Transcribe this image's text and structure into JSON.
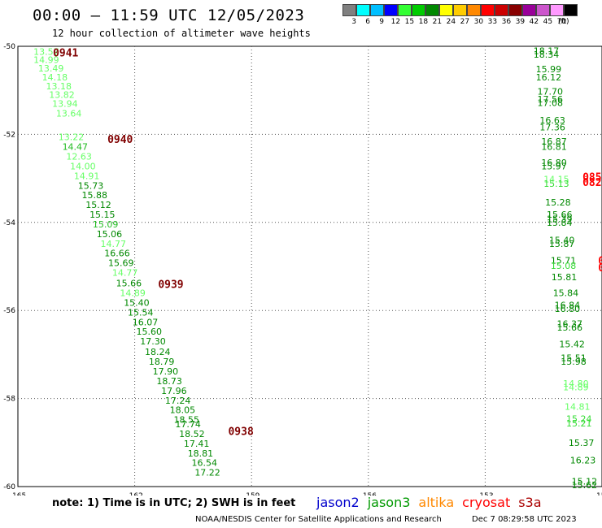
{
  "header": {
    "title": "00:00 – 11:59 UTC 12/05/2023",
    "subtitle": "12 hour collection of altimeter wave heights"
  },
  "legend": {
    "unit": "(ft)",
    "bins": [
      {
        "label": "3",
        "color": "#808080"
      },
      {
        "label": "6",
        "color": "#00ffff"
      },
      {
        "label": "9",
        "color": "#00bfff"
      },
      {
        "label": "12",
        "color": "#0000ff"
      },
      {
        "label": "15",
        "color": "#33ff33"
      },
      {
        "label": "18",
        "color": "#00cc00"
      },
      {
        "label": "21",
        "color": "#008800"
      },
      {
        "label": "24",
        "color": "#ffff00"
      },
      {
        "label": "27",
        "color": "#ffcc00"
      },
      {
        "label": "30",
        "color": "#ff8800"
      },
      {
        "label": "33",
        "color": "#ff0000"
      },
      {
        "label": "36",
        "color": "#cc0000"
      },
      {
        "label": "39",
        "color": "#880000"
      },
      {
        "label": "42",
        "color": "#990099"
      },
      {
        "label": "45",
        "color": "#cc55cc"
      },
      {
        "label": "70",
        "color": "#ff99ff"
      },
      {
        "label": "",
        "color": "#000000"
      }
    ]
  },
  "chart_data": {
    "type": "scatter",
    "title": "00:00 – 11:59 UTC 12/05/2023",
    "xlim": [
      -165,
      -150
    ],
    "ylim": [
      -60,
      -50
    ],
    "x_ticks": [
      -165,
      -162,
      -159,
      -156,
      -153,
      -150
    ],
    "y_ticks": [
      -50,
      -52,
      -54,
      -56,
      -58,
      -60
    ],
    "x_tick_labels": [
      "-165",
      "-162",
      "-159",
      "-156",
      "-153",
      "-150"
    ],
    "y_tick_labels": [
      "-50",
      "-52",
      "-54",
      "-56",
      "-58",
      "-60"
    ],
    "grid": true,
    "tracks": [
      {
        "id": "track-west",
        "points": [
          {
            "lon": -164.6,
            "lat": -50.12,
            "v": "13.57",
            "c": "#66ff66"
          },
          {
            "lon": -164.6,
            "lat": -50.3,
            "v": "14.99",
            "c": "#66ff66"
          },
          {
            "lon": -164.48,
            "lat": -50.5,
            "v": "13.49",
            "c": "#66ff66"
          },
          {
            "lon": -164.38,
            "lat": -50.7,
            "v": "14.18",
            "c": "#66ff66"
          },
          {
            "lon": -164.28,
            "lat": -50.9,
            "v": "13.18",
            "c": "#66ff66"
          },
          {
            "lon": -164.2,
            "lat": -51.1,
            "v": "13.82",
            "c": "#66ff66"
          },
          {
            "lon": -164.12,
            "lat": -51.3,
            "v": "13.94",
            "c": "#66ff66"
          },
          {
            "lon": -164.02,
            "lat": -51.52,
            "v": "13.64",
            "c": "#66ff66"
          },
          {
            "lon": -163.96,
            "lat": -52.06,
            "v": "13.22",
            "c": "#66ff66"
          },
          {
            "lon": -163.86,
            "lat": -52.28,
            "v": "14.47",
            "c": "#22bb22"
          },
          {
            "lon": -163.76,
            "lat": -52.5,
            "v": "12.63",
            "c": "#66ff66"
          },
          {
            "lon": -163.66,
            "lat": -52.72,
            "v": "14.00",
            "c": "#66ff66"
          },
          {
            "lon": -163.56,
            "lat": -52.94,
            "v": "14.91",
            "c": "#66ff66"
          },
          {
            "lon": -163.46,
            "lat": -53.16,
            "v": "15.73",
            "c": "#008800"
          },
          {
            "lon": -163.36,
            "lat": -53.38,
            "v": "15.88",
            "c": "#008800"
          },
          {
            "lon": -163.26,
            "lat": -53.6,
            "v": "15.12",
            "c": "#008800"
          },
          {
            "lon": -163.16,
            "lat": -53.82,
            "v": "15.15",
            "c": "#008800"
          },
          {
            "lon": -163.08,
            "lat": -54.04,
            "v": "15.09",
            "c": "#22bb22"
          },
          {
            "lon": -162.98,
            "lat": -54.26,
            "v": "15.06",
            "c": "#008800"
          },
          {
            "lon": -162.88,
            "lat": -54.48,
            "v": "14.77",
            "c": "#66ff66"
          },
          {
            "lon": -162.78,
            "lat": -54.7,
            "v": "16.66",
            "c": "#008800"
          },
          {
            "lon": -162.68,
            "lat": -54.92,
            "v": "15.69",
            "c": "#008800"
          },
          {
            "lon": -162.58,
            "lat": -55.14,
            "v": "14.77",
            "c": "#66ff66"
          },
          {
            "lon": -162.48,
            "lat": -55.38,
            "v": "15.66",
            "c": "#008800"
          },
          {
            "lon": -162.38,
            "lat": -55.6,
            "v": "14.89",
            "c": "#66ff66"
          },
          {
            "lon": -162.28,
            "lat": -55.82,
            "v": "15.40",
            "c": "#008800"
          },
          {
            "lon": -162.18,
            "lat": -56.04,
            "v": "15.54",
            "c": "#008800"
          },
          {
            "lon": -162.06,
            "lat": -56.26,
            "v": "16.07",
            "c": "#008800"
          },
          {
            "lon": -161.96,
            "lat": -56.48,
            "v": "15.60",
            "c": "#008800"
          },
          {
            "lon": -161.86,
            "lat": -56.7,
            "v": "17.30",
            "c": "#008800"
          },
          {
            "lon": -161.74,
            "lat": -56.94,
            "v": "18.24",
            "c": "#008800"
          },
          {
            "lon": -161.64,
            "lat": -57.16,
            "v": "18.79",
            "c": "#008800"
          },
          {
            "lon": -161.54,
            "lat": -57.38,
            "v": "17.90",
            "c": "#008800"
          },
          {
            "lon": -161.44,
            "lat": -57.6,
            "v": "18.73",
            "c": "#008800"
          },
          {
            "lon": -161.32,
            "lat": -57.82,
            "v": "17.96",
            "c": "#008800"
          },
          {
            "lon": -161.22,
            "lat": -58.04,
            "v": "17.24",
            "c": "#008800"
          },
          {
            "lon": -161.1,
            "lat": -58.26,
            "v": "18.05",
            "c": "#008800"
          },
          {
            "lon": -161.0,
            "lat": -58.48,
            "v": "18.55",
            "c": "#008800"
          },
          {
            "lon": -160.96,
            "lat": -58.58,
            "v": "17.74",
            "c": "#008800"
          },
          {
            "lon": -160.86,
            "lat": -58.8,
            "v": "18.52",
            "c": "#008800"
          },
          {
            "lon": -160.74,
            "lat": -59.02,
            "v": "17.41",
            "c": "#008800"
          },
          {
            "lon": -160.64,
            "lat": -59.24,
            "v": "18.81",
            "c": "#008800"
          },
          {
            "lon": -160.54,
            "lat": -59.46,
            "v": "16.54",
            "c": "#008800"
          },
          {
            "lon": -160.46,
            "lat": -59.68,
            "v": "17.22",
            "c": "#008800"
          }
        ]
      },
      {
        "id": "track-east",
        "points": [
          {
            "lon": -151.76,
            "lat": -50.1,
            "v": "18.17",
            "c": "#008800"
          },
          {
            "lon": -151.76,
            "lat": -50.18,
            "v": "18.34",
            "c": "#008800"
          },
          {
            "lon": -151.7,
            "lat": -50.52,
            "v": "15.99",
            "c": "#008800"
          },
          {
            "lon": -151.7,
            "lat": -50.7,
            "v": "16.12",
            "c": "#008800"
          },
          {
            "lon": -151.66,
            "lat": -51.02,
            "v": "17.70",
            "c": "#008800"
          },
          {
            "lon": -151.66,
            "lat": -51.2,
            "v": "17.56",
            "c": "#008800"
          },
          {
            "lon": -151.66,
            "lat": -51.28,
            "v": "17.08",
            "c": "#008800"
          },
          {
            "lon": -151.6,
            "lat": -51.68,
            "v": "16.63",
            "c": "#008800"
          },
          {
            "lon": -151.6,
            "lat": -51.84,
            "v": "17.36",
            "c": "#008800"
          },
          {
            "lon": -151.56,
            "lat": -52.16,
            "v": "16.87",
            "c": "#008800"
          },
          {
            "lon": -151.56,
            "lat": -52.28,
            "v": "16.81",
            "c": "#008800"
          },
          {
            "lon": -151.56,
            "lat": -52.64,
            "v": "16.80",
            "c": "#008800"
          },
          {
            "lon": -151.56,
            "lat": -52.72,
            "v": "15.97",
            "c": "#008800"
          },
          {
            "lon": -151.5,
            "lat": -53.02,
            "v": "14.15",
            "c": "#66ff66"
          },
          {
            "lon": -151.5,
            "lat": -53.12,
            "v": "15.13",
            "c": "#33dd33"
          },
          {
            "lon": -151.46,
            "lat": -53.54,
            "v": "15.28",
            "c": "#008800"
          },
          {
            "lon": -151.42,
            "lat": -53.82,
            "v": "15.66",
            "c": "#008800"
          },
          {
            "lon": -151.42,
            "lat": -53.92,
            "v": "15.39",
            "c": "#008800"
          },
          {
            "lon": -151.42,
            "lat": -54.0,
            "v": "15.84",
            "c": "#008800"
          },
          {
            "lon": -151.36,
            "lat": -54.4,
            "v": "15.40",
            "c": "#008800"
          },
          {
            "lon": -151.36,
            "lat": -54.48,
            "v": "15.87",
            "c": "#008800"
          },
          {
            "lon": -151.32,
            "lat": -54.86,
            "v": "15.71",
            "c": "#008800"
          },
          {
            "lon": -151.32,
            "lat": -54.98,
            "v": "15.08",
            "c": "#33dd33"
          },
          {
            "lon": -151.3,
            "lat": -55.24,
            "v": "15.81",
            "c": "#008800"
          },
          {
            "lon": -151.26,
            "lat": -55.6,
            "v": "15.84",
            "c": "#008800"
          },
          {
            "lon": -151.22,
            "lat": -55.88,
            "v": "16.84",
            "c": "#008800"
          },
          {
            "lon": -151.22,
            "lat": -55.96,
            "v": "16.80",
            "c": "#008800"
          },
          {
            "lon": -151.16,
            "lat": -56.3,
            "v": "16.37",
            "c": "#008800"
          },
          {
            "lon": -151.16,
            "lat": -56.38,
            "v": "15.66",
            "c": "#008800"
          },
          {
            "lon": -151.1,
            "lat": -56.76,
            "v": "15.42",
            "c": "#008800"
          },
          {
            "lon": -151.06,
            "lat": -57.08,
            "v": "15.51",
            "c": "#008800"
          },
          {
            "lon": -151.06,
            "lat": -57.16,
            "v": "15.98",
            "c": "#008800"
          },
          {
            "lon": -151.0,
            "lat": -57.66,
            "v": "14.80",
            "c": "#66ff66"
          },
          {
            "lon": -151.0,
            "lat": -57.74,
            "v": "14.89",
            "c": "#66ff66"
          },
          {
            "lon": -150.96,
            "lat": -58.18,
            "v": "14.81",
            "c": "#66ff66"
          },
          {
            "lon": -150.92,
            "lat": -58.46,
            "v": "15.24",
            "c": "#33dd33"
          },
          {
            "lon": -150.92,
            "lat": -58.56,
            "v": "15.21",
            "c": "#33dd33"
          },
          {
            "lon": -150.86,
            "lat": -59.0,
            "v": "15.37",
            "c": "#008800"
          },
          {
            "lon": -150.82,
            "lat": -59.4,
            "v": "16.23",
            "c": "#008800"
          },
          {
            "lon": -150.78,
            "lat": -59.88,
            "v": "15.12",
            "c": "#008800"
          },
          {
            "lon": -150.78,
            "lat": -59.96,
            "v": "15.62",
            "c": "#008800"
          }
        ]
      }
    ],
    "time_labels": [
      {
        "lon": -164.1,
        "lat": -50.14,
        "text": "0941",
        "c": "#800000"
      },
      {
        "lon": -162.7,
        "lat": -52.1,
        "text": "0940",
        "c": "#800000"
      },
      {
        "lon": -161.4,
        "lat": -55.4,
        "text": "0939",
        "c": "#800000"
      },
      {
        "lon": -159.6,
        "lat": -58.74,
        "text": "0938",
        "c": "#800000"
      }
    ],
    "cut_labels": [
      {
        "lon": -150.5,
        "lat": -52.96,
        "text": "085",
        "c": "#ff0000"
      },
      {
        "lon": -150.5,
        "lat": -53.08,
        "text": "082",
        "c": "#ff0000"
      },
      {
        "lon": -150.1,
        "lat": -54.86,
        "text": "0",
        "c": "#ff0000"
      },
      {
        "lon": -150.1,
        "lat": -55.02,
        "text": "0",
        "c": "#ff0000"
      }
    ]
  },
  "footer": {
    "note": "note: 1) Time is in UTC; 2) SWH is in feet",
    "missions": [
      {
        "label": "jason2",
        "color": "#0000cc"
      },
      {
        "label": "jason3",
        "color": "#009900"
      },
      {
        "label": "altika",
        "color": "#ff8800"
      },
      {
        "label": "cryosat",
        "color": "#ff0000"
      },
      {
        "label": "s3a",
        "color": "#aa0000"
      }
    ],
    "credit": "NOAA/NESDIS Center for Satellite Applications and Research",
    "timestamp": "Dec  7 08:29:58 UTC 2023"
  }
}
